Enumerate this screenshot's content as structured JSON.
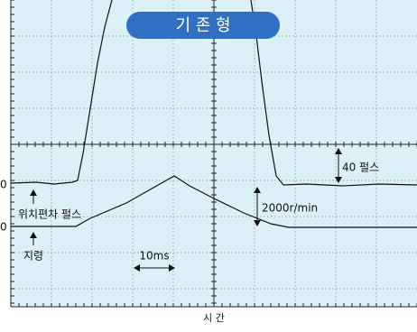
{
  "title": "기 존 형",
  "zero_labels": [
    "0",
    "0"
  ],
  "annotations": {
    "pulse_amount": "40 펄스",
    "position_error": "위치편차 펄스",
    "speed": "2000r/min",
    "command": "지령",
    "time_span": "10ms"
  },
  "x_axis_label": "시 간"
}
